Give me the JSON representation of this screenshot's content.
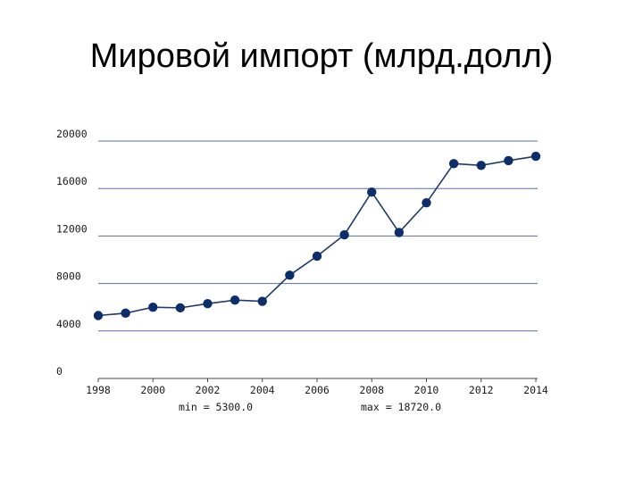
{
  "slide": {
    "title": "Мировой импорт (млрд.долл)"
  },
  "chart_data": {
    "type": "line",
    "title": "",
    "xlabel": "",
    "ylabel": "",
    "x": [
      1998,
      1999,
      2000,
      2001,
      2002,
      2003,
      2004,
      2005,
      2006,
      2007,
      2008,
      2009,
      2010,
      2011,
      2012,
      2013,
      2014
    ],
    "series": [
      {
        "values": [
          5300,
          5500,
          6000,
          5950,
          6300,
          6600,
          6500,
          8700,
          10300,
          12100,
          15700,
          12300,
          14800,
          18100,
          17950,
          18350,
          18720
        ]
      }
    ],
    "xlim": [
      1998,
      2014
    ],
    "ylim": [
      0,
      20000
    ],
    "x_ticks": [
      "1998",
      "2000",
      "2002",
      "2004",
      "2006",
      "2008",
      "2010",
      "2012",
      "2014"
    ],
    "y_ticks": [
      "0",
      "4000",
      "8000",
      "12000",
      "16000",
      "20000"
    ],
    "grid": "horizontal",
    "legend": "none",
    "annotations": {
      "min": "min = 5300.0",
      "max": "max = 18720.0"
    },
    "colors": {
      "line": "#1f3a68",
      "marker": "#0d2e6b",
      "grid": "#5b6fa3",
      "axis": "#444444"
    }
  }
}
